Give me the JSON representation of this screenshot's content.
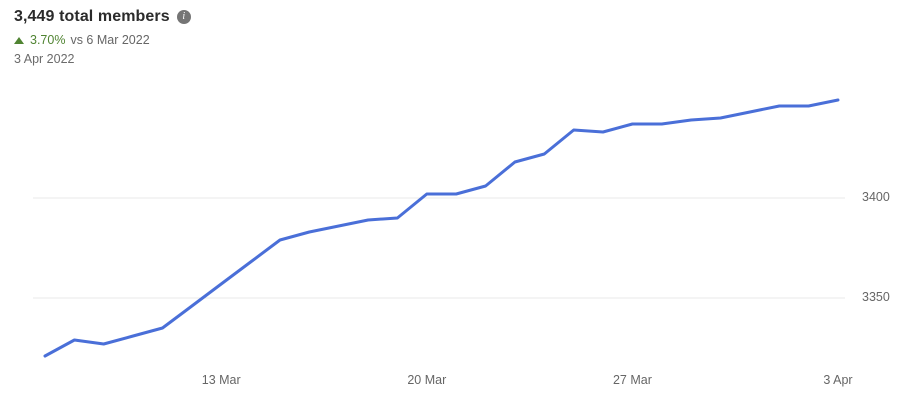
{
  "header": {
    "title": "3,449 total members",
    "info_icon_name": "info-icon",
    "change_direction": "up",
    "change_percent": "3.70%",
    "change_comparison": "vs 6 Mar 2022",
    "date_label": "3 Apr 2022"
  },
  "colors": {
    "line": "#4a6fd8",
    "positive": "#508432",
    "muted_text": "#666666",
    "title_text": "#2b2b2b",
    "gridline": "#e8e8e8",
    "info_icon_bg": "#757575"
  },
  "chart_data": {
    "type": "line",
    "title": "3,449 total members",
    "xlabel": "",
    "ylabel": "",
    "grid": "horizontal",
    "legend": "none",
    "ylim": [
      3315,
      3457
    ],
    "y_ticks": [
      {
        "label": "3400",
        "value": 3400
      },
      {
        "label": "3350",
        "value": 3350
      }
    ],
    "x_ticks": [
      {
        "label": "13 Mar",
        "index": 6
      },
      {
        "label": "20 Mar",
        "index": 13
      },
      {
        "label": "27 Mar",
        "index": 20
      },
      {
        "label": "3 Apr",
        "index": 27
      }
    ],
    "series": [
      {
        "name": "Total members",
        "dates": [
          "7 Mar",
          "8 Mar",
          "9 Mar",
          "10 Mar",
          "11 Mar",
          "12 Mar",
          "13 Mar",
          "14 Mar",
          "15 Mar",
          "16 Mar",
          "17 Mar",
          "18 Mar",
          "19 Mar",
          "20 Mar",
          "21 Mar",
          "22 Mar",
          "23 Mar",
          "24 Mar",
          "25 Mar",
          "26 Mar",
          "27 Mar",
          "28 Mar",
          "29 Mar",
          "30 Mar",
          "31 Mar",
          "1 Apr",
          "2 Apr",
          "3 Apr"
        ],
        "values": [
          3321,
          3329,
          3327,
          3331,
          3335,
          3346,
          3357,
          3368,
          3379,
          3383,
          3386,
          3389,
          3390,
          3402,
          3402,
          3406,
          3418,
          3422,
          3434,
          3433,
          3437,
          3437,
          3439,
          3440,
          3443,
          3446,
          3446,
          3449
        ]
      }
    ]
  }
}
